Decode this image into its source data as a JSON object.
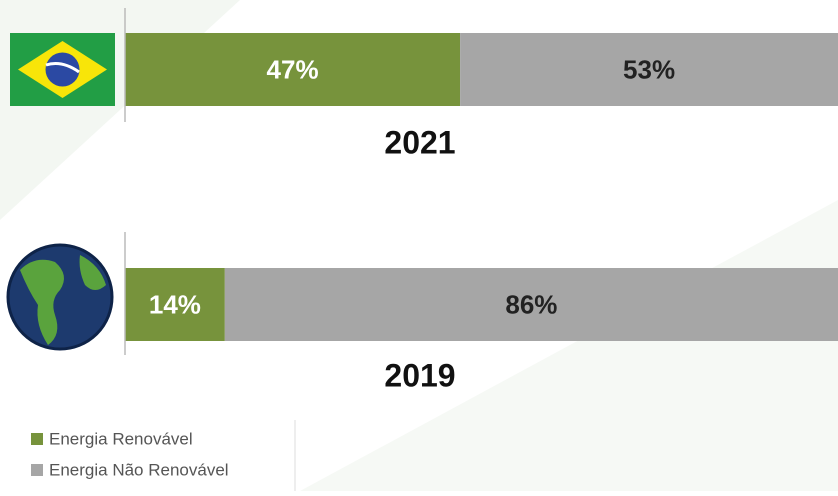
{
  "chart_data": [
    {
      "type": "bar",
      "orientation": "horizontal",
      "stacked": true,
      "title": "2021",
      "categories": [
        null
      ],
      "xlim": [
        0,
        100
      ],
      "series": [
        {
          "name": "Energia Renovável",
          "color": "#77933c",
          "values": [
            47
          ],
          "value_labels": [
            "47%"
          ]
        },
        {
          "name": "Energia Não Renovável",
          "color": "#a6a6a6",
          "values": [
            53
          ],
          "value_labels": [
            "53%"
          ]
        }
      ]
    },
    {
      "type": "bar",
      "orientation": "horizontal",
      "stacked": true,
      "title": "2019",
      "categories": [
        null
      ],
      "xlim": [
        0,
        100
      ],
      "series": [
        {
          "name": "Energia Renovável",
          "color": "#77933c",
          "values": [
            14
          ],
          "value_labels": [
            "14%"
          ]
        },
        {
          "name": "Energia Não Renovável",
          "color": "#a6a6a6",
          "values": [
            86
          ],
          "value_labels": [
            "86%"
          ]
        }
      ]
    }
  ]
}
